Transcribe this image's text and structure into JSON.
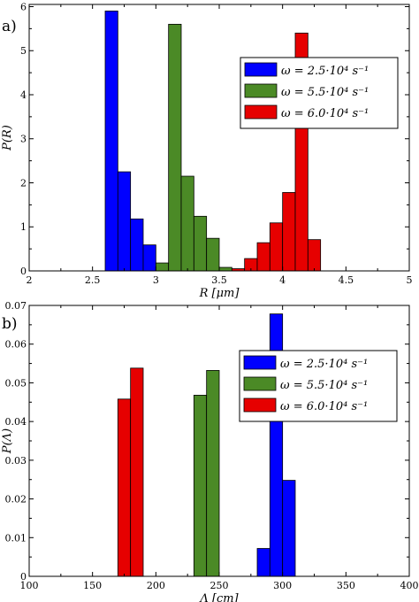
{
  "chart_data": [
    {
      "type": "bar",
      "panel_label": "a)",
      "xlabel": "R [μm]",
      "ylabel": "P(R)",
      "xlim": [
        2,
        5
      ],
      "ylim": [
        0,
        6.05
      ],
      "xticks": [
        2,
        2.5,
        3,
        3.5,
        4,
        4.5,
        5
      ],
      "xtick_labels": [
        "2",
        "2.5",
        "3",
        "3.5",
        "4",
        "4.5",
        "5"
      ],
      "yticks": [
        0,
        1,
        2,
        3,
        4,
        5,
        6
      ],
      "ytick_labels": [
        "0",
        "1",
        "2",
        "3",
        "4",
        "5",
        "6"
      ],
      "grid": false,
      "legend_position": "right",
      "bin_width": 0.1,
      "series": [
        {
          "name": "ω = 2.5·10⁴ s⁻¹",
          "color": "#0000ff",
          "x": [
            2.6,
            2.7,
            2.8,
            2.9
          ],
          "values": [
            5.9,
            2.25,
            1.18,
            0.59
          ]
        },
        {
          "name": "ω = 5.5·10⁴ s⁻¹",
          "color": "#4b8a26",
          "x": [
            3.0,
            3.1,
            3.2,
            3.3,
            3.4,
            3.5
          ],
          "values": [
            0.18,
            5.6,
            2.15,
            1.24,
            0.74,
            0.08
          ]
        },
        {
          "name": "ω = 6.0·10⁴ s⁻¹",
          "color": "#e60000",
          "x": [
            3.6,
            3.7,
            3.8,
            3.9,
            4.0,
            4.1,
            4.2
          ],
          "values": [
            0.05,
            0.28,
            0.64,
            1.09,
            1.78,
            5.4,
            0.71
          ]
        }
      ]
    },
    {
      "type": "bar",
      "panel_label": "b)",
      "xlabel": "Λ [cm]",
      "ylabel": "P(Λ)",
      "xlim": [
        100,
        400
      ],
      "ylim": [
        0,
        0.07
      ],
      "xticks": [
        100,
        150,
        200,
        250,
        300,
        350,
        400
      ],
      "xtick_labels": [
        "100",
        "150",
        "200",
        "250",
        "300",
        "350",
        "400"
      ],
      "yticks": [
        0,
        0.01,
        0.02,
        0.03,
        0.04,
        0.05,
        0.06,
        0.07
      ],
      "ytick_labels": [
        "0",
        "0.01",
        "0.02",
        "0.03",
        "0.04",
        "0.05",
        "0.06",
        "0.07"
      ],
      "grid": false,
      "legend_position": "top-right",
      "bin_width": 10,
      "series": [
        {
          "name": "ω = 2.5·10⁴ s⁻¹",
          "color": "#0000ff",
          "x": [
            280,
            290,
            300
          ],
          "values": [
            0.0072,
            0.0678,
            0.0248
          ]
        },
        {
          "name": "ω = 5.5·10⁴ s⁻¹",
          "color": "#4b8a26",
          "x": [
            230,
            240
          ],
          "values": [
            0.0468,
            0.0532
          ]
        },
        {
          "name": "ω = 6.0·10⁴ s⁻¹",
          "color": "#e60000",
          "x": [
            170,
            180
          ],
          "values": [
            0.0458,
            0.0538
          ]
        }
      ]
    }
  ]
}
